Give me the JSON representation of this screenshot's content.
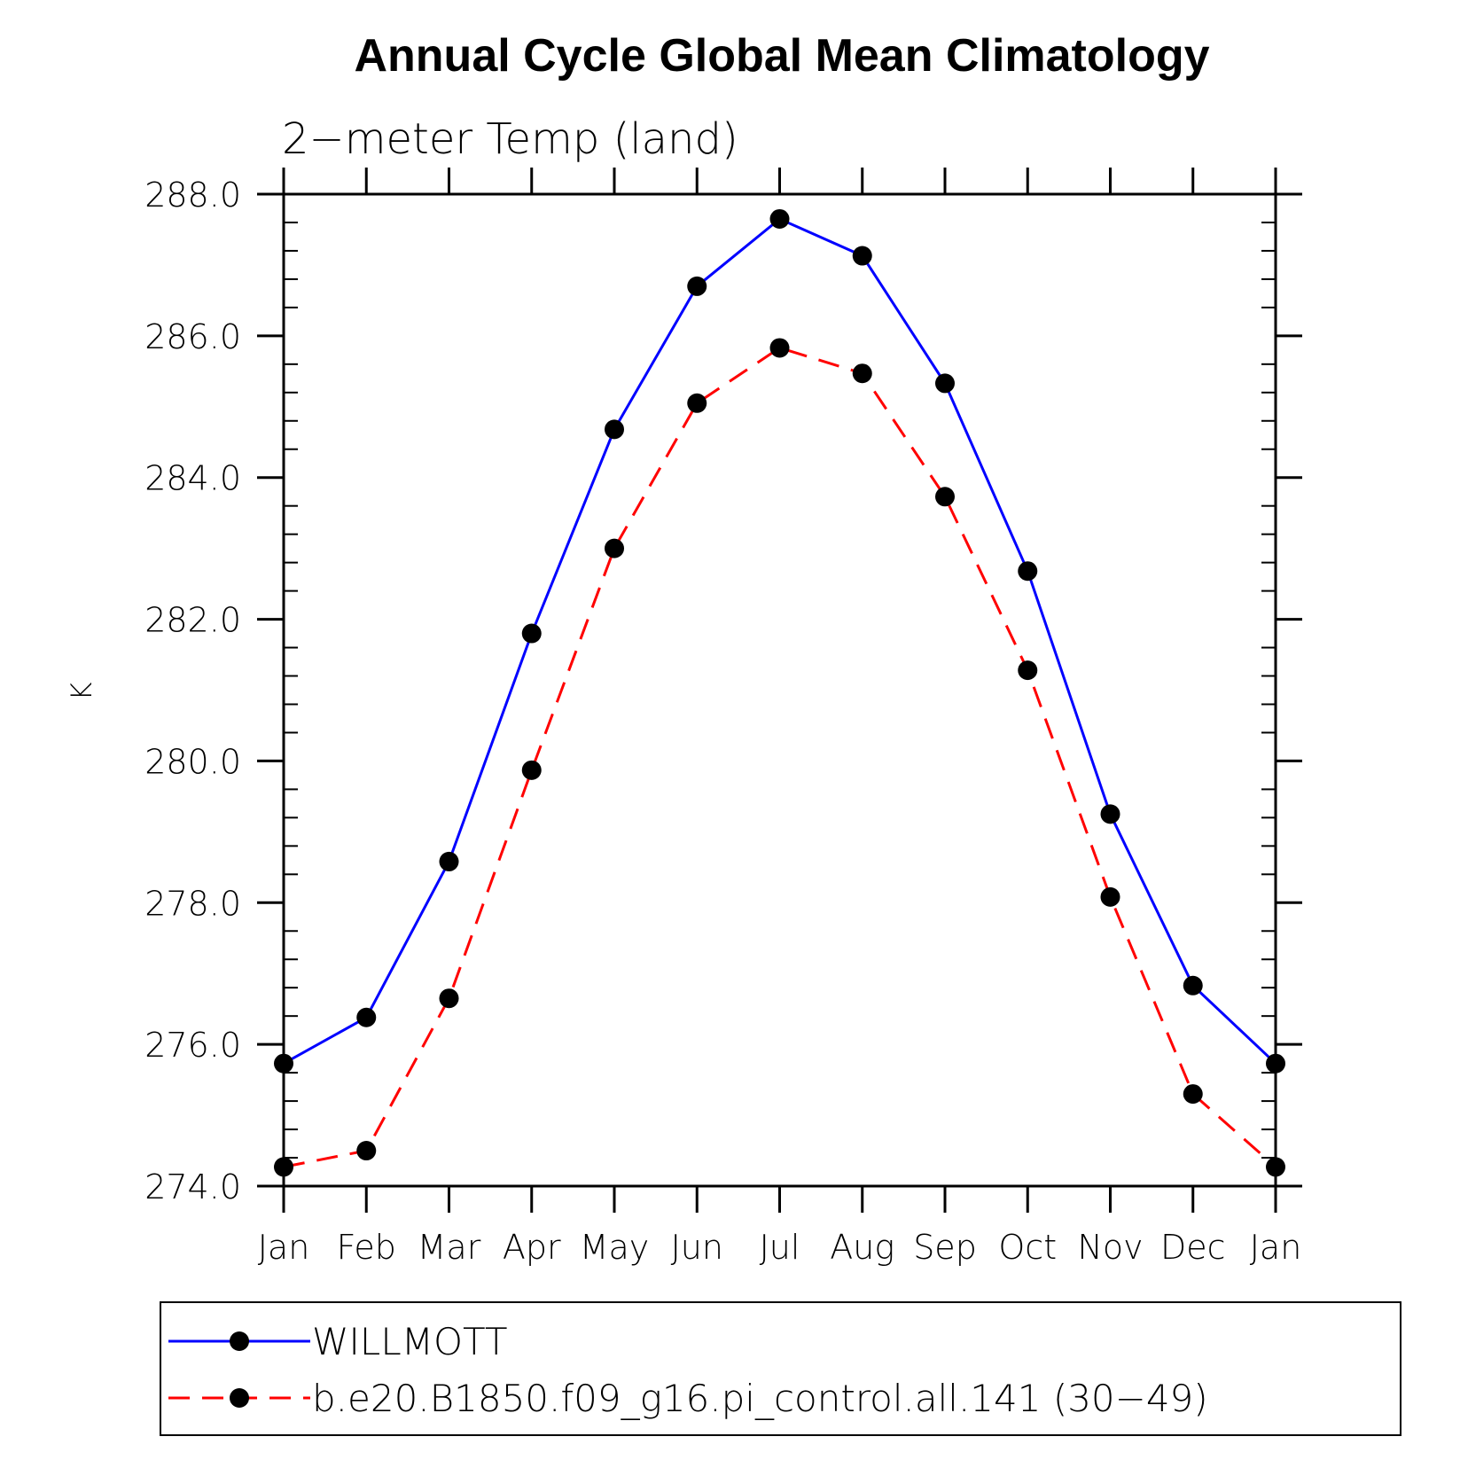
{
  "chart_data": {
    "type": "line",
    "title": "Annual Cycle Global Mean Climatology",
    "subtitle": "2−meter Temp (land)",
    "ylabel": "K",
    "xlabel": "",
    "categories": [
      "Jan",
      "Feb",
      "Mar",
      "Apr",
      "May",
      "Jun",
      "Jul",
      "Aug",
      "Sep",
      "Oct",
      "Nov",
      "Dec",
      "Jan"
    ],
    "ylim": [
      274.0,
      288.0
    ],
    "yticks": [
      "274.0",
      "276.0",
      "278.0",
      "280.0",
      "282.0",
      "284.0",
      "286.0",
      "288.0"
    ],
    "grid": false,
    "legend_position": "bottom",
    "series": [
      {
        "name": "WILLMOTT",
        "color": "#0000ff",
        "dash": "solid",
        "marker": "filled-circle",
        "values": [
          275.73,
          276.38,
          278.58,
          281.8,
          284.68,
          286.7,
          287.65,
          287.13,
          285.33,
          282.68,
          279.25,
          276.83,
          275.73
        ]
      },
      {
        "name": "b.e20.B1850.f09_g16.pi_control.all.141 (30−49)",
        "color": "#ff0000",
        "dash": "dashed",
        "marker": "filled-circle",
        "values": [
          274.27,
          274.5,
          276.65,
          279.87,
          283.0,
          285.05,
          285.83,
          285.47,
          283.73,
          281.28,
          278.08,
          275.3,
          274.27
        ]
      }
    ]
  }
}
